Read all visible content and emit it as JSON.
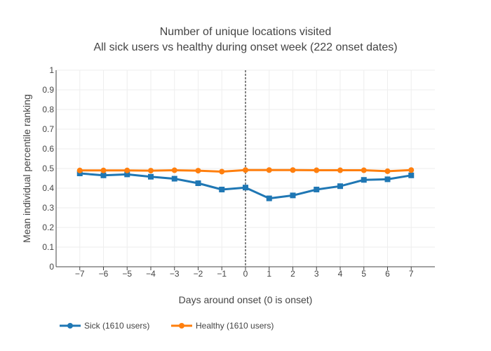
{
  "chart_data": {
    "type": "line",
    "title": [
      "Number of unique locations visited",
      "All sick users vs healthy during onset week (222 onset dates)"
    ],
    "xlabel": "Days around onset (0 is onset)",
    "ylabel": "Mean individual percentile ranking",
    "x": [
      -7,
      -6,
      -5,
      -4,
      -3,
      -2,
      -1,
      0,
      1,
      2,
      3,
      4,
      5,
      6,
      7
    ],
    "x_tick_labels": [
      "−7",
      "−6",
      "−5",
      "−4",
      "−3",
      "−2",
      "−1",
      "0",
      "1",
      "2",
      "3",
      "4",
      "5",
      "6",
      "7"
    ],
    "xlim": [
      -8,
      8
    ],
    "ylim": [
      0,
      1
    ],
    "y_ticks": [
      0,
      0.1,
      0.2,
      0.3,
      0.4,
      0.5,
      0.6,
      0.7,
      0.8,
      0.9,
      1
    ],
    "y_tick_labels": [
      "0",
      "0.1",
      "0.2",
      "0.3",
      "0.4",
      "0.5",
      "0.6",
      "0.7",
      "0.8",
      "0.9",
      "1"
    ],
    "vertical_line": {
      "x": 0,
      "style": "dashed"
    },
    "grid": true,
    "legend_position": "bottom-left",
    "series": [
      {
        "name": "Sick (1610 users)",
        "color": "#1f77b4",
        "marker": "square",
        "values": [
          0.475,
          0.465,
          0.47,
          0.458,
          0.448,
          0.425,
          0.393,
          0.403,
          0.348,
          0.363,
          0.393,
          0.41,
          0.442,
          0.445,
          0.465
        ]
      },
      {
        "name": "Healthy (1610 users)",
        "color": "#ff7f0e",
        "marker": "circle",
        "values": [
          0.49,
          0.49,
          0.49,
          0.489,
          0.491,
          0.489,
          0.484,
          0.492,
          0.492,
          0.492,
          0.491,
          0.491,
          0.491,
          0.486,
          0.492
        ]
      }
    ]
  }
}
